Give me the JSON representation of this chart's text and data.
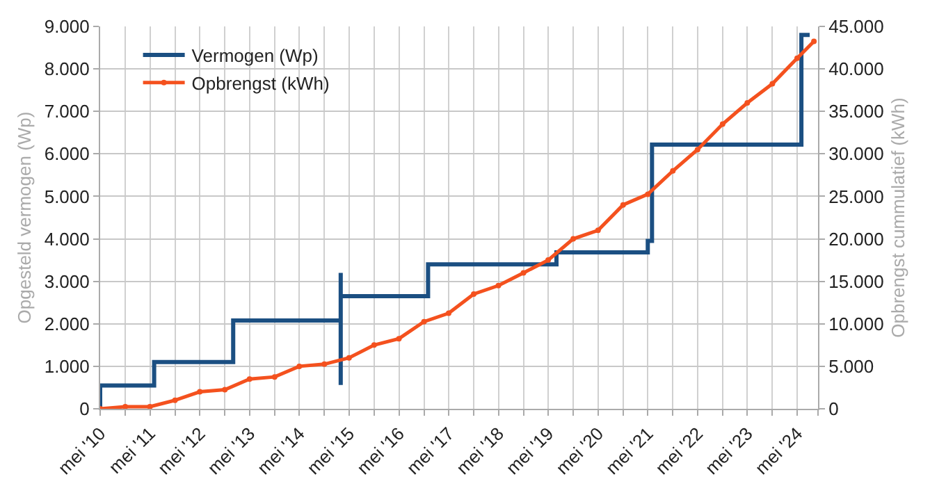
{
  "chart_data": {
    "type": "line",
    "ylabel": "Opgesteld vermogen (Wp)",
    "y2label": "Opbrengst cummulatief (kWh)",
    "series": [
      {
        "name": "Vermogen (Wp)",
        "type": "step",
        "color": "#1b4f82",
        "marker": "none",
        "axis": "y",
        "x": [
          "2010-05",
          "2010-05",
          "2011-06",
          "2013-01",
          "2015-03",
          "2015-03",
          "2015-03",
          "2016-12",
          "2019-07",
          "2021-05",
          "2021-06",
          "2024-06",
          "2024-08"
        ],
        "values": [
          0,
          550,
          1100,
          2080,
          560,
          3200,
          2650,
          3400,
          3680,
          3950,
          6220,
          8800,
          8800
        ]
      },
      {
        "name": "Opbrengst (kWh)",
        "color": "#f4511e",
        "marker": "circle",
        "axis": "y2",
        "x": [
          "2010-05",
          "2010-11",
          "2011-05",
          "2011-11",
          "2012-05",
          "2012-11",
          "2013-05",
          "2013-11",
          "2014-05",
          "2014-11",
          "2015-05",
          "2015-11",
          "2016-05",
          "2016-11",
          "2017-05",
          "2017-11",
          "2018-05",
          "2018-11",
          "2019-05",
          "2019-11",
          "2020-05",
          "2020-11",
          "2021-05",
          "2021-11",
          "2022-05",
          "2022-11",
          "2023-05",
          "2023-11",
          "2024-05",
          "2024-09"
        ],
        "values": [
          0,
          250,
          250,
          1000,
          2000,
          2250,
          3500,
          3750,
          5000,
          5250,
          6000,
          7500,
          8250,
          10250,
          11250,
          13500,
          14500,
          16000,
          17500,
          20000,
          21000,
          24000,
          25250,
          28000,
          30500,
          33500,
          36000,
          38250,
          41250,
          43250
        ]
      }
    ],
    "xlim": [
      "2010-05",
      "2024-10"
    ],
    "xticks": [
      {
        "value": "2010-05",
        "label": "mei '10"
      },
      {
        "value": "2010-11",
        "label": null
      },
      {
        "value": "2011-05",
        "label": "mei '11"
      },
      {
        "value": "2011-11",
        "label": null
      },
      {
        "value": "2012-05",
        "label": "mei '12"
      },
      {
        "value": "2012-11",
        "label": null
      },
      {
        "value": "2013-05",
        "label": "mei '13"
      },
      {
        "value": "2013-11",
        "label": null
      },
      {
        "value": "2014-05",
        "label": "mei '14"
      },
      {
        "value": "2014-11",
        "label": null
      },
      {
        "value": "2015-05",
        "label": "mei '15"
      },
      {
        "value": "2015-11",
        "label": null
      },
      {
        "value": "2016-05",
        "label": "mei '16"
      },
      {
        "value": "2016-11",
        "label": null
      },
      {
        "value": "2017-05",
        "label": "mei '17"
      },
      {
        "value": "2017-11",
        "label": null
      },
      {
        "value": "2018-05",
        "label": "mei '18"
      },
      {
        "value": "2018-11",
        "label": null
      },
      {
        "value": "2019-05",
        "label": "mei '19"
      },
      {
        "value": "2019-11",
        "label": null
      },
      {
        "value": "2020-05",
        "label": "mei '20"
      },
      {
        "value": "2020-11",
        "label": null
      },
      {
        "value": "2021-05",
        "label": "mei '21"
      },
      {
        "value": "2021-11",
        "label": null
      },
      {
        "value": "2022-05",
        "label": "mei '22"
      },
      {
        "value": "2022-11",
        "label": null
      },
      {
        "value": "2023-05",
        "label": "mei '23"
      },
      {
        "value": "2023-11",
        "label": null
      },
      {
        "value": "2024-05",
        "label": "mei '24"
      },
      {
        "value": "2024-10",
        "label": null
      }
    ],
    "ylim": [
      0,
      9000
    ],
    "yticks": [
      0,
      {
        "value": 1000,
        "label": "1.000"
      },
      {
        "value": 2000,
        "label": "2.000"
      },
      {
        "value": 3000,
        "label": "3.000"
      },
      {
        "value": 4000,
        "label": "4.000"
      },
      {
        "value": 5000,
        "label": "5.000"
      },
      {
        "value": 6000,
        "label": "6.000"
      },
      {
        "value": 7000,
        "label": "7.000"
      },
      {
        "value": 8000,
        "label": "8.000"
      },
      {
        "value": 9000,
        "label": "9.000"
      }
    ],
    "y2lim": [
      0,
      45000
    ],
    "y2ticks": [
      0,
      {
        "value": 5000,
        "label": "5.000"
      },
      {
        "value": 10000,
        "label": "10.000"
      },
      {
        "value": 15000,
        "label": "15.000"
      },
      {
        "value": 20000,
        "label": "20.000"
      },
      {
        "value": 25000,
        "label": "25.000"
      },
      {
        "value": 30000,
        "label": "30.000"
      },
      {
        "value": 35000,
        "label": "35.000"
      },
      {
        "value": 40000,
        "label": "40.000"
      },
      {
        "value": 45000,
        "label": "45.000"
      }
    ],
    "grid": true,
    "legend": "top left"
  }
}
